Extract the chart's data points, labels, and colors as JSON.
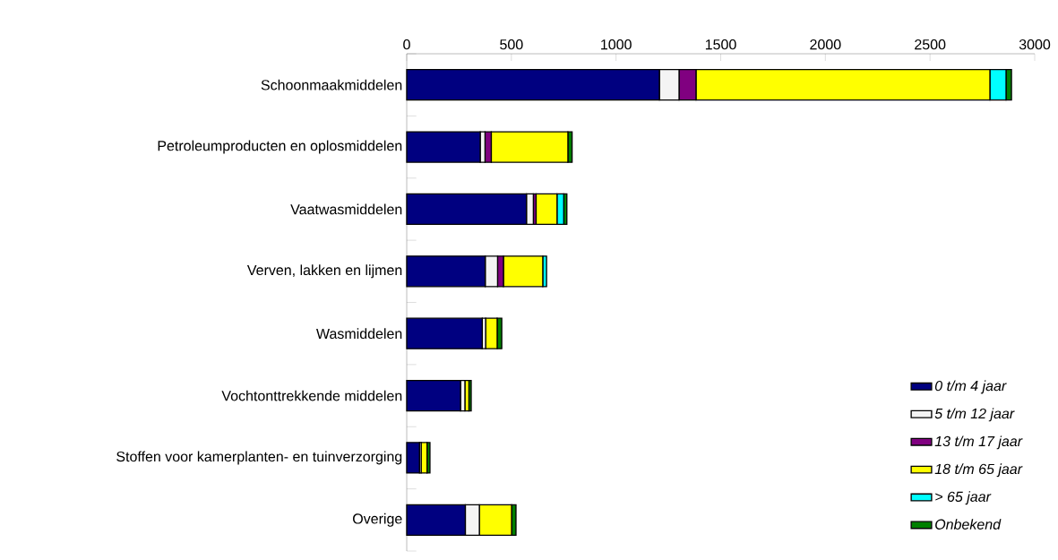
{
  "chart_data": {
    "type": "bar",
    "orientation": "horizontal",
    "stacked": true,
    "categories": [
      "Schoonmaakmiddelen",
      "Petroleumproducten en oplosmiddelen",
      "Vaatwasmiddelen",
      "Verven, lakken en lijmen",
      "Wasmiddelen",
      "Vochtonttrekkende middelen",
      "Stoffen voor kamerplanten- en tuinverzorging",
      "Overige"
    ],
    "series": [
      {
        "name": "0 t/m 4 jaar",
        "color": "#000080",
        "values": [
          1207,
          351,
          572,
          375,
          361,
          257,
          61,
          280
        ]
      },
      {
        "name": "5 t/m 12 jaar",
        "color": "#f4f4f4",
        "values": [
          94,
          23,
          33,
          59,
          16,
          21,
          8,
          67
        ]
      },
      {
        "name": "13 t/m 17 jaar",
        "color": "#800080",
        "values": [
          81,
          30,
          13,
          28,
          0,
          0,
          0,
          0
        ]
      },
      {
        "name": "18 t/m 65 jaar",
        "color": "#ffff00",
        "values": [
          1404,
          366,
          100,
          188,
          55,
          19,
          28,
          154
        ]
      },
      {
        "name": "> 65 jaar",
        "color": "#00ffff",
        "values": [
          77,
          0,
          32,
          18,
          0,
          0,
          0,
          0
        ]
      },
      {
        "name": "Onbekend",
        "color": "#008000",
        "values": [
          26,
          20,
          15,
          0,
          22,
          11,
          14,
          21
        ]
      }
    ],
    "xlim": [
      0,
      3000
    ],
    "xticks": [
      0,
      500,
      1000,
      1500,
      2000,
      2500,
      3000
    ],
    "grid": false,
    "legend": "bottom right"
  }
}
